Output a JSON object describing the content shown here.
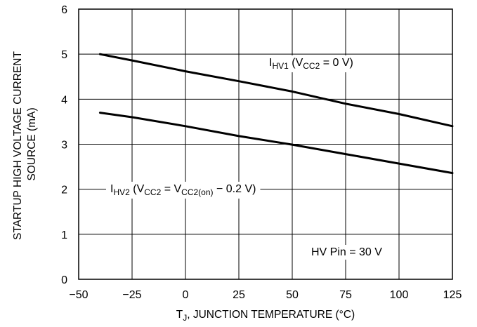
{
  "chart_data": {
    "type": "line",
    "xlabel_parts": [
      "T",
      "J",
      ", JUNCTION TEMPERATURE (°C)"
    ],
    "ylabel_lines": [
      "STARTUP HIGH VOLTAGE CURRENT",
      "SOURCE (mA)"
    ],
    "xlim": [
      -50,
      125
    ],
    "ylim": [
      0,
      6
    ],
    "xticks": [
      -50,
      -25,
      0,
      25,
      50,
      75,
      100,
      125
    ],
    "yticks": [
      0,
      1,
      2,
      3,
      4,
      5,
      6
    ],
    "xtick_labels": [
      "−50",
      "−25",
      "0",
      "25",
      "50",
      "75",
      "100",
      "125"
    ],
    "ytick_labels": [
      "0",
      "1",
      "2",
      "3",
      "4",
      "5",
      "6"
    ],
    "grid": true,
    "series": [
      {
        "name_parts": [
          "I",
          "HV1",
          " (V",
          "CC2",
          " = 0 V)"
        ],
        "x": [
          -40,
          -25,
          0,
          25,
          50,
          75,
          100,
          125
        ],
        "y": [
          5.0,
          4.86,
          4.62,
          4.4,
          4.17,
          3.9,
          3.67,
          3.4
        ]
      },
      {
        "name_parts": [
          "I",
          "HV2",
          " (V",
          "CC2",
          " = V",
          "CC2(on)",
          " − 0.2 V)"
        ],
        "x": [
          -40,
          -25,
          0,
          25,
          50,
          75,
          100,
          125
        ],
        "y": [
          3.7,
          3.6,
          3.4,
          3.18,
          2.99,
          2.78,
          2.57,
          2.36
        ]
      }
    ],
    "annotation": "HV Pin = 30 V"
  }
}
